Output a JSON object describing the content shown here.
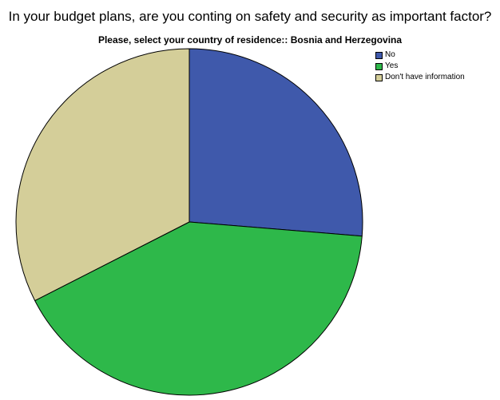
{
  "chart_data": {
    "type": "pie",
    "title": "In your budget plans, are you conting on safety and security as important factor?",
    "subtitle": "Please, select your country of residence:: Bosnia and Herzegovina",
    "categories": [
      "No",
      "Yes",
      "Don't have information"
    ],
    "values": [
      26.3,
      41.2,
      32.5
    ],
    "colors": [
      "#3f59ab",
      "#2eb84a",
      "#d4ce99"
    ],
    "start_angle_deg": 0,
    "direction": "clockwise",
    "legend_position": "top-right"
  }
}
